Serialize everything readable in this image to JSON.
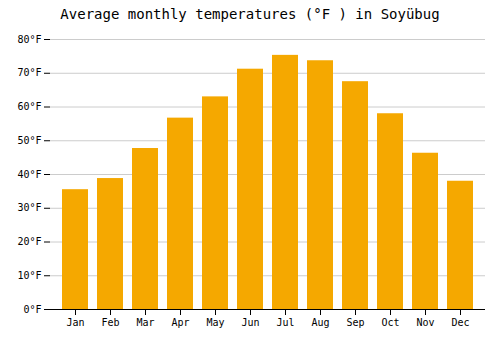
{
  "chart_data": {
    "type": "bar",
    "title": "Average monthly temperatures (°F ) in Soyübug",
    "categories": [
      "Jan",
      "Feb",
      "Mar",
      "Apr",
      "May",
      "Jun",
      "Jul",
      "Aug",
      "Sep",
      "Oct",
      "Nov",
      "Dec"
    ],
    "values": [
      35.5,
      38.8,
      47.7,
      56.7,
      63.0,
      71.2,
      75.3,
      73.7,
      67.5,
      58.0,
      46.3,
      38.0
    ],
    "color": "#F5A800",
    "ylim": [
      0,
      80
    ],
    "yticks": [
      {
        "value": 0,
        "label": "0°F"
      },
      {
        "value": 10,
        "label": "10°F"
      },
      {
        "value": 20,
        "label": "20°F"
      },
      {
        "value": 30,
        "label": "30°F"
      },
      {
        "value": 40,
        "label": "40°F"
      },
      {
        "value": 50,
        "label": "50°F"
      },
      {
        "value": 60,
        "label": "60°F"
      },
      {
        "value": 70,
        "label": "70°F"
      },
      {
        "value": 80,
        "label": "80°F"
      }
    ],
    "grid": true
  }
}
